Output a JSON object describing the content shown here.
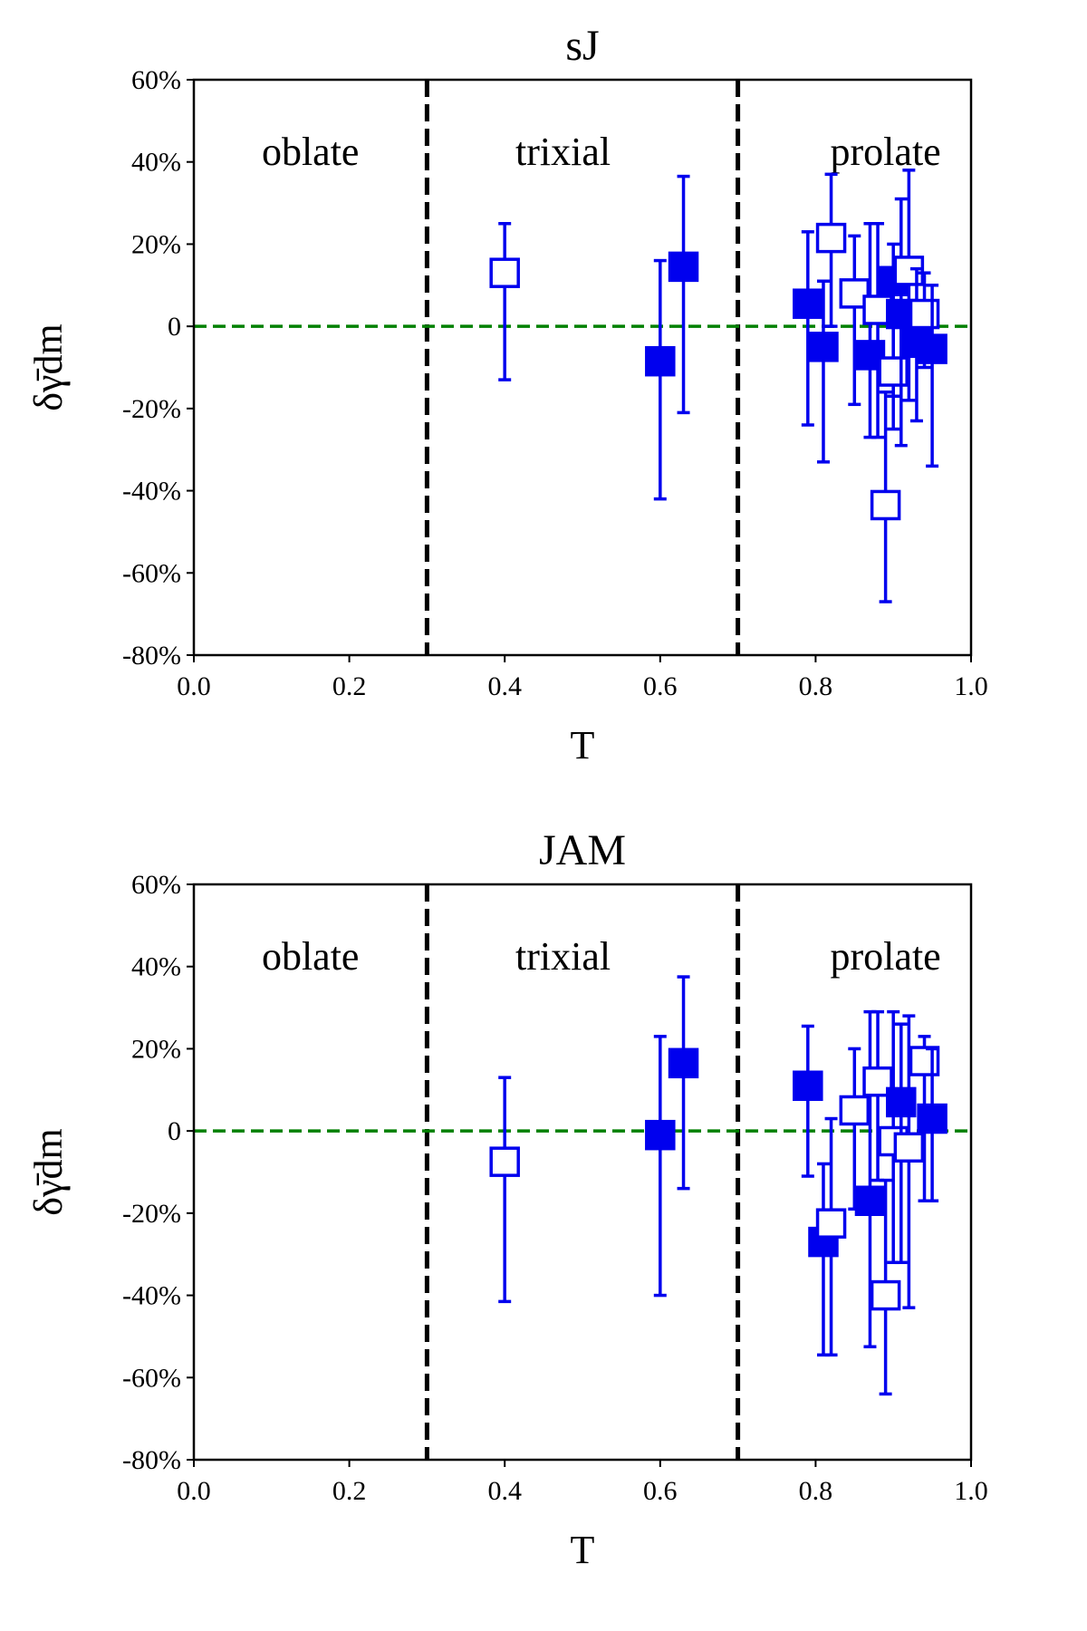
{
  "chart_data": [
    {
      "type": "scatter",
      "title": "sJ",
      "xlabel": "T",
      "ylabel": "δγ̄dm",
      "xlim": [
        0.0,
        1.0
      ],
      "ylim": [
        -0.8,
        0.6
      ],
      "xticks": [
        "0.0",
        "0.2",
        "0.4",
        "0.6",
        "0.8",
        "1.0"
      ],
      "yticks": [
        "-80%",
        "-60%",
        "-40%",
        "-20%",
        "0",
        "20%",
        "40%",
        "60%"
      ],
      "regions": [
        {
          "label": "oblate",
          "x": 0.15
        },
        {
          "label": "trixial",
          "x": 0.475
        },
        {
          "label": "prolate",
          "x": 0.89
        }
      ],
      "boundaries": [
        0.3,
        0.7
      ],
      "reference_y": 0,
      "colors": {
        "marker": "#0000ee",
        "boundary": "#000000",
        "reference": "#008000"
      },
      "points": [
        {
          "x": 0.4,
          "y": 0.13,
          "lo": -0.13,
          "hi": 0.25,
          "filled": false
        },
        {
          "x": 0.6,
          "y": -0.085,
          "lo": -0.42,
          "hi": 0.16,
          "filled": true
        },
        {
          "x": 0.63,
          "y": 0.145,
          "lo": -0.21,
          "hi": 0.365,
          "filled": true
        },
        {
          "x": 0.79,
          "y": 0.055,
          "lo": -0.24,
          "hi": 0.23,
          "filled": true
        },
        {
          "x": 0.81,
          "y": -0.05,
          "lo": -0.33,
          "hi": 0.11,
          "filled": true
        },
        {
          "x": 0.82,
          "y": 0.215,
          "lo": 0.0,
          "hi": 0.37,
          "filled": false
        },
        {
          "x": 0.85,
          "y": 0.08,
          "lo": -0.19,
          "hi": 0.22,
          "filled": false
        },
        {
          "x": 0.87,
          "y": -0.07,
          "lo": -0.27,
          "hi": 0.25,
          "filled": true
        },
        {
          "x": 0.88,
          "y": 0.04,
          "lo": -0.27,
          "hi": 0.25,
          "filled": false
        },
        {
          "x": 0.89,
          "y": -0.435,
          "lo": -0.67,
          "hi": -0.16,
          "filled": false
        },
        {
          "x": 0.9,
          "y": 0.11,
          "lo": -0.17,
          "hi": 0.2,
          "filled": true
        },
        {
          "x": 0.9,
          "y": -0.11,
          "lo": -0.25,
          "hi": 0.03,
          "filled": false
        },
        {
          "x": 0.91,
          "y": 0.03,
          "lo": -0.29,
          "hi": 0.31,
          "filled": true
        },
        {
          "x": 0.92,
          "y": 0.135,
          "lo": -0.18,
          "hi": 0.38,
          "filled": false
        },
        {
          "x": 0.93,
          "y": -0.04,
          "lo": -0.23,
          "hi": 0.14,
          "filled": true
        },
        {
          "x": 0.94,
          "y": 0.03,
          "lo": -0.1,
          "hi": 0.13,
          "filled": false
        },
        {
          "x": 0.95,
          "y": -0.055,
          "lo": -0.34,
          "hi": 0.1,
          "filled": true
        }
      ]
    },
    {
      "type": "scatter",
      "title": "JAM",
      "xlabel": "T",
      "ylabel": "δγ̄dm",
      "xlim": [
        0.0,
        1.0
      ],
      "ylim": [
        -0.8,
        0.6
      ],
      "xticks": [
        "0.0",
        "0.2",
        "0.4",
        "0.6",
        "0.8",
        "1.0"
      ],
      "yticks": [
        "-80%",
        "-60%",
        "-40%",
        "-20%",
        "0",
        "20%",
        "40%",
        "60%"
      ],
      "regions": [
        {
          "label": "oblate",
          "x": 0.15
        },
        {
          "label": "trixial",
          "x": 0.475
        },
        {
          "label": "prolate",
          "x": 0.89
        }
      ],
      "boundaries": [
        0.3,
        0.7
      ],
      "reference_y": 0,
      "colors": {
        "marker": "#0000ee",
        "boundary": "#000000",
        "reference": "#008000"
      },
      "points": [
        {
          "x": 0.4,
          "y": -0.075,
          "lo": -0.415,
          "hi": 0.13,
          "filled": false
        },
        {
          "x": 0.6,
          "y": -0.01,
          "lo": -0.4,
          "hi": 0.23,
          "filled": true
        },
        {
          "x": 0.63,
          "y": 0.165,
          "lo": -0.14,
          "hi": 0.375,
          "filled": true
        },
        {
          "x": 0.79,
          "y": 0.11,
          "lo": -0.11,
          "hi": 0.255,
          "filled": true
        },
        {
          "x": 0.81,
          "y": -0.27,
          "lo": -0.545,
          "hi": -0.08,
          "filled": true
        },
        {
          "x": 0.82,
          "y": -0.225,
          "lo": -0.545,
          "hi": 0.03,
          "filled": false
        },
        {
          "x": 0.85,
          "y": 0.05,
          "lo": -0.19,
          "hi": 0.2,
          "filled": false
        },
        {
          "x": 0.87,
          "y": -0.17,
          "lo": -0.525,
          "hi": 0.29,
          "filled": true
        },
        {
          "x": 0.88,
          "y": 0.12,
          "lo": -0.12,
          "hi": 0.29,
          "filled": false
        },
        {
          "x": 0.89,
          "y": -0.4,
          "lo": -0.64,
          "hi": -0.12,
          "filled": false
        },
        {
          "x": 0.9,
          "y": -0.025,
          "lo": -0.32,
          "hi": 0.29,
          "filled": false
        },
        {
          "x": 0.91,
          "y": 0.07,
          "lo": -0.32,
          "hi": 0.26,
          "filled": true
        },
        {
          "x": 0.92,
          "y": -0.04,
          "lo": -0.43,
          "hi": 0.28,
          "filled": false
        },
        {
          "x": 0.94,
          "y": 0.17,
          "lo": -0.17,
          "hi": 0.23,
          "filled": false
        },
        {
          "x": 0.95,
          "y": 0.03,
          "lo": -0.17,
          "hi": 0.2,
          "filled": true
        }
      ]
    }
  ]
}
